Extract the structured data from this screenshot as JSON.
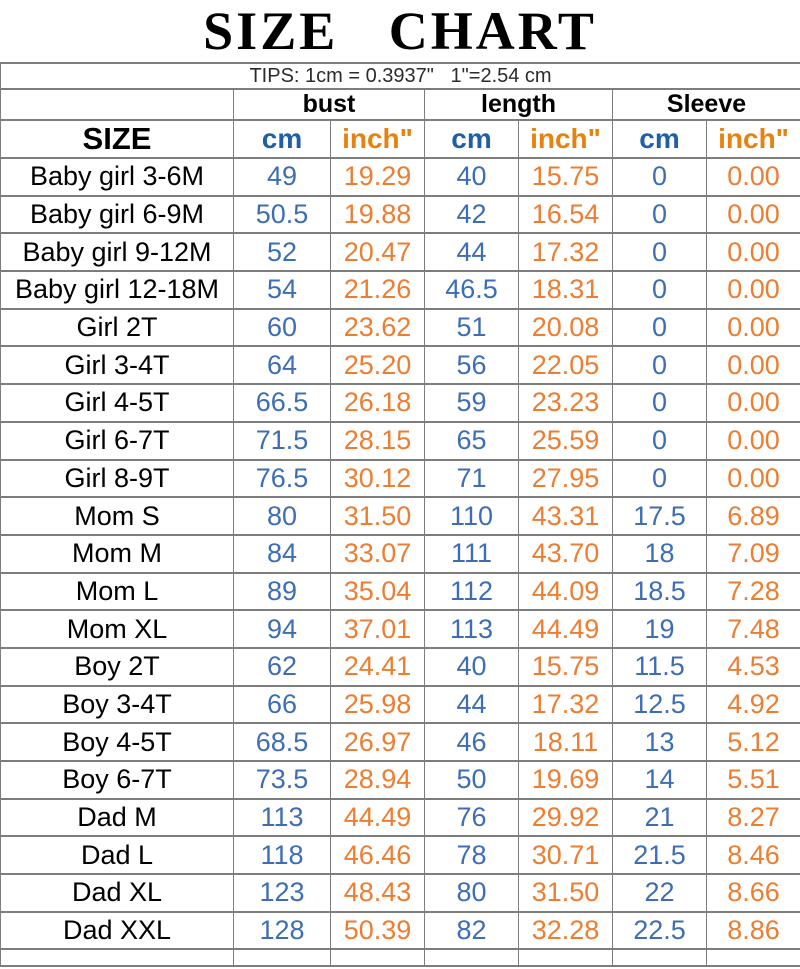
{
  "title": "SIZE CHART",
  "tips": "TIPS: 1cm = 0.3937\"   1\"=2.54 cm",
  "colors": {
    "cm_header": "#1f5fa8",
    "inch_header": "#e8820e",
    "cm_value": "#3d6eb5",
    "inch_value": "#ed7d31",
    "grid_border": "#7d7d7d",
    "text": "#000000"
  },
  "table": {
    "size_header": "SIZE",
    "groups": [
      "bust",
      "length",
      "Sleeve"
    ],
    "unit_cm": "cm",
    "unit_inch": "inch\"",
    "rows": [
      {
        "size": "Baby girl 3-6M",
        "values": [
          "49",
          "19.29",
          "40",
          "15.75",
          "0",
          "0.00"
        ]
      },
      {
        "size": "Baby girl 6-9M",
        "values": [
          "50.5",
          "19.88",
          "42",
          "16.54",
          "0",
          "0.00"
        ]
      },
      {
        "size": "Baby girl 9-12M",
        "values": [
          "52",
          "20.47",
          "44",
          "17.32",
          "0",
          "0.00"
        ]
      },
      {
        "size": "Baby girl 12-18M",
        "values": [
          "54",
          "21.26",
          "46.5",
          "18.31",
          "0",
          "0.00"
        ]
      },
      {
        "size": "Girl 2T",
        "values": [
          "60",
          "23.62",
          "51",
          "20.08",
          "0",
          "0.00"
        ]
      },
      {
        "size": "Girl 3-4T",
        "values": [
          "64",
          "25.20",
          "56",
          "22.05",
          "0",
          "0.00"
        ]
      },
      {
        "size": "Girl 4-5T",
        "values": [
          "66.5",
          "26.18",
          "59",
          "23.23",
          "0",
          "0.00"
        ]
      },
      {
        "size": "Girl 6-7T",
        "values": [
          "71.5",
          "28.15",
          "65",
          "25.59",
          "0",
          "0.00"
        ]
      },
      {
        "size": "Girl 8-9T",
        "values": [
          "76.5",
          "30.12",
          "71",
          "27.95",
          "0",
          "0.00"
        ]
      },
      {
        "size": "Mom S",
        "values": [
          "80",
          "31.50",
          "110",
          "43.31",
          "17.5",
          "6.89"
        ]
      },
      {
        "size": "Mom M",
        "values": [
          "84",
          "33.07",
          "111",
          "43.70",
          "18",
          "7.09"
        ]
      },
      {
        "size": "Mom L",
        "values": [
          "89",
          "35.04",
          "112",
          "44.09",
          "18.5",
          "7.28"
        ]
      },
      {
        "size": "Mom XL",
        "values": [
          "94",
          "37.01",
          "113",
          "44.49",
          "19",
          "7.48"
        ]
      },
      {
        "size": "Boy 2T",
        "values": [
          "62",
          "24.41",
          "40",
          "15.75",
          "11.5",
          "4.53"
        ]
      },
      {
        "size": "Boy 3-4T",
        "values": [
          "66",
          "25.98",
          "44",
          "17.32",
          "12.5",
          "4.92"
        ]
      },
      {
        "size": "Boy 4-5T",
        "values": [
          "68.5",
          "26.97",
          "46",
          "18.11",
          "13",
          "5.12"
        ]
      },
      {
        "size": "Boy 6-7T",
        "values": [
          "73.5",
          "28.94",
          "50",
          "19.69",
          "14",
          "5.51"
        ]
      },
      {
        "size": "Dad M",
        "values": [
          "113",
          "44.49",
          "76",
          "29.92",
          "21",
          "8.27"
        ]
      },
      {
        "size": "Dad L",
        "values": [
          "118",
          "46.46",
          "78",
          "30.71",
          "21.5",
          "8.46"
        ]
      },
      {
        "size": "Dad XL",
        "values": [
          "123",
          "48.43",
          "80",
          "31.50",
          "22",
          "8.66"
        ]
      },
      {
        "size": "Dad XXL",
        "values": [
          "128",
          "50.39",
          "82",
          "32.28",
          "22.5",
          "8.86"
        ]
      }
    ]
  }
}
